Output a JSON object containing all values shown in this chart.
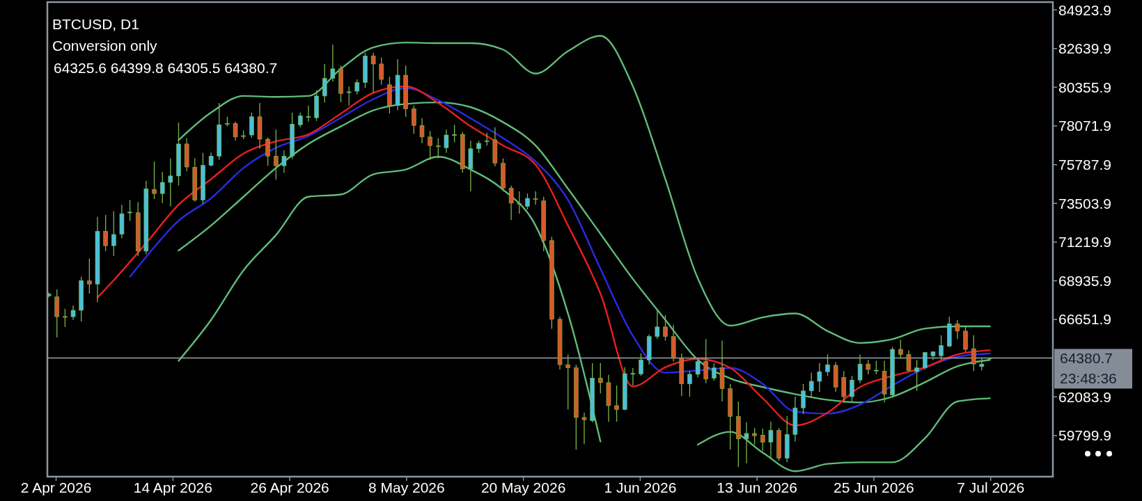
{
  "chart_data": {
    "type": "candlestick",
    "title": "BTCUSD, D1",
    "subtitle": "Conversion only",
    "annotations": [
      "64325.6 64399.8 64305.5 64380.7",
      "23:48:36"
    ],
    "xlim": [
      "2026-04-01T02:24",
      "2026-07-13T09:22"
    ],
    "xticks": [
      {
        "value": "2026-04-02",
        "label": "2 Apr 2026"
      },
      {
        "value": "2026-04-14",
        "label": "14 Apr 2026"
      },
      {
        "value": "2026-04-26",
        "label": "26 Apr 2026"
      },
      {
        "value": "2026-05-08",
        "label": "8 May 2026"
      },
      {
        "value": "2026-05-20",
        "label": "20 May 2026"
      },
      {
        "value": "2026-06-01",
        "label": "1 Jun 2026"
      },
      {
        "value": "2026-06-13",
        "label": "13 Jun 2026"
      },
      {
        "value": "2026-06-25",
        "label": "25 Jun 2026"
      },
      {
        "value": "2026-07-07",
        "label": "7 Jul 2026"
      }
    ],
    "ylim": [
      57376,
      85384
    ],
    "yticks": [
      59799.9,
      62083.9,
      66651.9,
      68935.9,
      71219.9,
      73503.9,
      75787.9,
      78071.9,
      80355.9,
      82639.9,
      84923.9
    ],
    "ref_lines": [
      {
        "axis": "y",
        "value": 64380.7,
        "label": "64380.7",
        "color": "#9aa5b1"
      }
    ],
    "x": [
      "2026-04-01T06:00",
      "2026-04-02T02:00",
      "2026-04-02T22:00",
      "2026-04-03T18:00",
      "2026-04-04T14:00",
      "2026-04-05T10:00",
      "2026-04-06T06:00",
      "2026-04-07T02:00",
      "2026-04-07T22:00",
      "2026-04-08T18:00",
      "2026-04-09T14:00",
      "2026-04-10T10:00",
      "2026-04-11T06:00",
      "2026-04-12T02:00",
      "2026-04-12T22:00",
      "2026-04-13T18:00",
      "2026-04-14T14:00",
      "2026-04-15T10:00",
      "2026-04-16T06:00",
      "2026-04-17T02:00",
      "2026-04-17T22:00",
      "2026-04-18T18:00",
      "2026-04-19T14:00",
      "2026-04-20T10:00",
      "2026-04-21T06:00",
      "2026-04-22T02:00",
      "2026-04-22T22:00",
      "2026-04-23T18:00",
      "2026-04-24T14:00",
      "2026-04-25T10:00",
      "2026-04-26T06:00",
      "2026-04-27T02:00",
      "2026-04-27T22:00",
      "2026-04-28T18:00",
      "2026-04-29T14:00",
      "2026-04-30T10:00",
      "2026-05-01T06:00",
      "2026-05-02T02:00",
      "2026-05-02T22:00",
      "2026-05-03T18:00",
      "2026-05-04T14:00",
      "2026-05-05T10:00",
      "2026-05-06T06:00",
      "2026-05-07T02:00",
      "2026-05-07T22:00",
      "2026-05-08T18:00",
      "2026-05-09T14:00",
      "2026-05-10T10:00",
      "2026-05-11T06:00",
      "2026-05-12T02:00",
      "2026-05-12T22:00",
      "2026-05-13T18:00",
      "2026-05-14T14:00",
      "2026-05-15T10:00",
      "2026-05-16T06:00",
      "2026-05-17T02:00",
      "2026-05-17T22:00",
      "2026-05-18T18:00",
      "2026-05-19T14:00",
      "2026-05-20T10:00",
      "2026-05-21T06:00",
      "2026-05-22T02:00",
      "2026-05-22T22:00",
      "2026-05-23T18:00",
      "2026-05-24T14:00",
      "2026-05-25T10:00",
      "2026-05-26T06:00",
      "2026-05-27T02:00",
      "2026-05-27T22:00",
      "2026-05-28T18:00",
      "2026-05-29T14:00",
      "2026-05-30T10:00",
      "2026-05-31T06:00",
      "2026-06-01T02:00",
      "2026-06-01T22:00",
      "2026-06-02T18:00",
      "2026-06-03T14:00",
      "2026-06-04T10:00",
      "2026-06-05T06:00",
      "2026-06-06T02:00",
      "2026-06-06T22:00",
      "2026-06-07T18:00",
      "2026-06-08T14:00",
      "2026-06-09T10:00",
      "2026-06-10T06:00",
      "2026-06-11T02:00",
      "2026-06-11T22:00",
      "2026-06-12T18:00",
      "2026-06-13T14:00",
      "2026-06-14T10:00",
      "2026-06-15T06:00",
      "2026-06-16T02:00",
      "2026-06-16T22:00",
      "2026-06-17T18:00",
      "2026-06-18T14:00",
      "2026-06-19T10:00",
      "2026-06-20T06:00",
      "2026-06-21T02:00",
      "2026-06-21T22:00",
      "2026-06-22T18:00",
      "2026-06-23T14:00",
      "2026-06-24T10:00",
      "2026-06-25T06:00",
      "2026-06-26T02:00",
      "2026-06-26T22:00",
      "2026-06-27T18:00",
      "2026-06-28T14:00",
      "2026-06-29T10:00",
      "2026-06-30T06:00",
      "2026-07-01T02:00",
      "2026-07-01T22:00",
      "2026-07-02T18:00",
      "2026-07-03T14:00",
      "2026-07-04T10:00",
      "2026-07-05T06:00",
      "2026-07-06T02:00",
      "2026-07-06T22:00"
    ],
    "ohlc": [
      [
        68050,
        68250,
        67950,
        68150
      ],
      [
        67986,
        68420,
        65588,
        66816
      ],
      [
        66830,
        67288,
        66211,
        66800
      ],
      [
        66816,
        67476,
        66627,
        67193
      ],
      [
        67193,
        69176,
        66533,
        68949
      ],
      [
        68930,
        70252,
        68175,
        68741
      ],
      [
        68741,
        72707,
        67665,
        71857
      ],
      [
        71857,
        72820,
        70686,
        71007
      ],
      [
        71007,
        73046,
        70403,
        71668
      ],
      [
        71687,
        73424,
        71441,
        72895
      ],
      [
        72970,
        73707,
        72480,
        72990
      ],
      [
        72952,
        73575,
        70403,
        70686
      ],
      [
        70686,
        74840,
        70498,
        74368
      ],
      [
        74330,
        75973,
        73763,
        74085
      ],
      [
        74085,
        75368,
        73518,
        74746
      ],
      [
        74746,
        76162,
        73329,
        75123
      ],
      [
        75123,
        78276,
        74557,
        77011
      ],
      [
        77011,
        77351,
        75406,
        75652
      ],
      [
        75633,
        76162,
        73613,
        73707
      ],
      [
        73707,
        76482,
        73480,
        75746
      ],
      [
        75746,
        76501,
        75689,
        76294
      ],
      [
        76294,
        79428,
        76067,
        78144
      ],
      [
        78200,
        78616,
        78049,
        78220
      ],
      [
        78220,
        78333,
        77200,
        77426
      ],
      [
        77500,
        77804,
        77294,
        77480
      ],
      [
        77540,
        78862,
        77389,
        78616
      ],
      [
        78616,
        79428,
        76728,
        77294
      ],
      [
        77294,
        77389,
        75727,
        76294
      ],
      [
        76294,
        77861,
        74897,
        75727
      ],
      [
        75727,
        76634,
        75312,
        76294
      ],
      [
        76294,
        78862,
        76124,
        78182
      ],
      [
        78144,
        78862,
        77993,
        78672
      ],
      [
        78600,
        79277,
        78333,
        78630
      ],
      [
        78559,
        80183,
        78370,
        79843
      ],
      [
        79843,
        81731,
        79465,
        80881
      ],
      [
        80881,
        82864,
        80692,
        81448
      ],
      [
        81448,
        81637,
        79465,
        79994
      ],
      [
        80050,
        80409,
        79277,
        80090
      ],
      [
        80126,
        80825,
        79937,
        80636
      ],
      [
        80636,
        82392,
        80315,
        82203
      ],
      [
        82203,
        82392,
        80032,
        81731
      ],
      [
        81731,
        82109,
        80504,
        80825
      ],
      [
        80504,
        80976,
        78805,
        79277
      ],
      [
        79277,
        82014,
        78994,
        81070
      ],
      [
        81070,
        81637,
        78616,
        79088
      ],
      [
        79088,
        79277,
        77615,
        78106
      ],
      [
        78106,
        78522,
        77049,
        77426
      ],
      [
        77426,
        77766,
        76067,
        76916
      ],
      [
        76900,
        77351,
        76162,
        76860
      ],
      [
        76784,
        77861,
        76482,
        77540
      ],
      [
        77520,
        78144,
        77105,
        77560
      ],
      [
        77577,
        77729,
        75312,
        75538
      ],
      [
        75538,
        77200,
        74217,
        76728
      ],
      [
        76728,
        77200,
        76482,
        77049
      ],
      [
        77180,
        77672,
        76916,
        77200
      ],
      [
        77256,
        77993,
        75689,
        75878
      ],
      [
        75878,
        76162,
        74217,
        74406
      ],
      [
        74406,
        74557,
        72518,
        73518
      ],
      [
        73500,
        74217,
        72896,
        73460
      ],
      [
        73329,
        74085,
        73140,
        73801
      ],
      [
        73780,
        74217,
        73424,
        73760
      ],
      [
        73650,
        73896,
        70686,
        71309
      ],
      [
        71309,
        71535,
        66099,
        66665
      ],
      [
        66665,
        66816,
        63701,
        63984
      ],
      [
        63984,
        64588,
        61341,
        63795
      ],
      [
        63795,
        63984,
        58980,
        60868
      ],
      [
        60868,
        61152,
        59301,
        60736
      ],
      [
        60679,
        64078,
        60585,
        63191
      ],
      [
        63191,
        64078,
        62285,
        62926
      ],
      [
        62926,
        63380,
        60623,
        61567
      ],
      [
        61567,
        62757,
        60623,
        61341
      ],
      [
        61341,
        63833,
        61303,
        63455
      ],
      [
        63455,
        63795,
        62757,
        63470
      ],
      [
        63436,
        64645,
        63323,
        64267
      ],
      [
        64267,
        65777,
        63984,
        65645
      ],
      [
        65645,
        67193,
        65494,
        66212
      ],
      [
        66212,
        66910,
        65400,
        65645
      ],
      [
        65645,
        66344,
        64173,
        64361
      ],
      [
        64361,
        64645,
        62134,
        62851
      ],
      [
        62851,
        63606,
        62096,
        63417
      ],
      [
        63417,
        64361,
        63229,
        64173
      ],
      [
        64173,
        65494,
        62889,
        63135
      ],
      [
        63191,
        64078,
        63040,
        63795
      ],
      [
        63795,
        65400,
        61813,
        62568
      ],
      [
        62568,
        62851,
        58980,
        60925
      ],
      [
        60925,
        61813,
        57942,
        59603
      ],
      [
        59603,
        60585,
        58168,
        59924
      ],
      [
        59924,
        60246,
        59263,
        59792
      ],
      [
        59830,
        60208,
        58886,
        59414
      ],
      [
        59414,
        60623,
        58414,
        60113
      ],
      [
        60113,
        60246,
        58320,
        58471
      ],
      [
        58471,
        60963,
        58225,
        59868
      ],
      [
        59868,
        62096,
        59452,
        61435
      ],
      [
        61435,
        62851,
        61058,
        62436
      ],
      [
        62436,
        63512,
        62002,
        63002
      ],
      [
        63002,
        64078,
        62379,
        63568
      ],
      [
        63568,
        64588,
        63323,
        63984
      ],
      [
        63946,
        64135,
        62379,
        62663
      ],
      [
        63229,
        63606,
        61718,
        62096
      ],
      [
        62096,
        63323,
        61813,
        63078
      ],
      [
        63078,
        64588,
        62889,
        64022
      ],
      [
        64022,
        64267,
        63417,
        63701
      ],
      [
        63640,
        64210,
        63417,
        63660
      ],
      [
        63606,
        64210,
        61756,
        62247
      ],
      [
        62190,
        65022,
        62096,
        64890
      ],
      [
        64890,
        65456,
        64399,
        64588
      ],
      [
        64588,
        64834,
        63606,
        63644
      ],
      [
        63568,
        64267,
        62436,
        63795
      ],
      [
        63795,
        64739,
        63701,
        64701
      ],
      [
        64512,
        64777,
        64267,
        64739
      ],
      [
        64512,
        65721,
        64267,
        65117
      ],
      [
        65079,
        66816,
        65022,
        66400
      ],
      [
        66400,
        66627,
        65494,
        65966
      ],
      [
        65966,
        66212,
        64739,
        64890
      ],
      [
        64928,
        65721,
        63607,
        64022
      ],
      [
        63870,
        64361,
        63644,
        64022
      ],
      [
        64325.6,
        64399.8,
        64305.5,
        64380.7
      ]
    ],
    "series": [
      {
        "type": "line",
        "color": "#5fbd7a",
        "x": [
          "2026-04-14T14:00",
          "2026-04-17T22:00",
          "2026-04-21T06:00",
          "2026-04-24T14:00",
          "2026-04-27T22:00",
          "2026-05-01T06:00",
          "2026-05-04T14:00",
          "2026-05-07T22:00",
          "2026-05-11T06:00",
          "2026-05-14T14:00",
          "2026-05-17T22:00",
          "2026-05-21T06:00",
          "2026-05-24T14:00",
          "2026-05-27T22:00",
          "2026-05-31T06:00",
          "2026-06-03T14:00",
          "2026-06-06T22:00",
          "2026-06-10T06:00",
          "2026-06-13T14:00",
          "2026-06-16T22:00",
          "2026-06-20T06:00",
          "2026-06-23T14:00",
          "2026-06-26T22:00",
          "2026-06-30T06:00",
          "2026-07-03T14:00",
          "2026-07-06T22:00"
        ],
        "values": [
          77238,
          78862,
          79843,
          79787,
          79843,
          81448,
          82713,
          82996,
          82958,
          82958,
          82581,
          81165,
          82486,
          83392,
          80409,
          74935,
          69082,
          66287,
          66778,
          67005,
          65966,
          65268,
          65494,
          66117,
          66249,
          66249
        ]
      },
      {
        "type": "line",
        "color": "#5fbd7a",
        "x": [
          "2026-04-14T14:00",
          "2026-04-17T22:00",
          "2026-04-21T06:00",
          "2026-04-24T14:00",
          "2026-04-27T22:00",
          "2026-05-01T06:00",
          "2026-05-04T14:00",
          "2026-05-07T22:00",
          "2026-05-11T06:00",
          "2026-05-14T14:00",
          "2026-05-17T22:00",
          "2026-05-21T06:00",
          "2026-05-24T14:00",
          "2026-05-27T22:00",
          "2026-05-31T06:00",
          "2026-06-03T14:00",
          "2026-06-06T22:00",
          "2026-06-10T06:00",
          "2026-06-13T14:00",
          "2026-06-16T22:00",
          "2026-06-20T06:00",
          "2026-06-23T14:00",
          "2026-06-26T22:00",
          "2026-06-30T06:00",
          "2026-07-03T14:00",
          "2026-07-06T22:00"
        ],
        "values": [
          70724,
          72197,
          73896,
          75595,
          77011,
          78050,
          78994,
          79371,
          79465,
          79182,
          78295,
          76916,
          74368,
          71706,
          69044,
          66627,
          64267,
          63172,
          62663,
          62247,
          61907,
          61756,
          62096,
          62946,
          63890,
          64267
        ]
      },
      {
        "type": "line",
        "color": "#5fbd7a",
        "x": [
          "2026-04-14T14:00",
          "2026-04-17T22:00",
          "2026-04-21T06:00",
          "2026-04-24T14:00",
          "2026-04-27T22:00",
          "2026-05-01T06:00",
          "2026-05-04T14:00",
          "2026-05-07T22:00",
          "2026-05-11T06:00",
          "2026-05-14T14:00",
          "2026-05-17T22:00",
          "2026-05-21T06:00",
          "2026-05-24T14:00",
          "2026-05-27T22:00",
          "2026-05-31T06:00",
          "2026-06-03T14:00",
          "2026-06-06T22:00",
          "2026-06-10T06:00",
          "2026-06-13T14:00",
          "2026-06-16T22:00",
          "2026-06-20T06:00",
          "2026-06-23T14:00",
          "2026-06-26T22:00",
          "2026-06-30T06:00",
          "2026-07-03T14:00",
          "2026-07-06T22:00"
        ],
        "values": [
          64210,
          66627,
          69554,
          71630,
          73896,
          74029,
          75218,
          75500,
          76256,
          75500,
          74311,
          72197,
          67004,
          59452,
          null,
          null,
          59263,
          60019,
          58792,
          57697,
          58131,
          58225,
          58225,
          59641,
          61813,
          62002
        ]
      },
      {
        "type": "line",
        "color": "#2a2ae6",
        "x": [
          "2026-04-09T14:00",
          "2026-04-11T06:00",
          "2026-04-14T14:00",
          "2026-04-17T22:00",
          "2026-04-21T06:00",
          "2026-04-24T14:00",
          "2026-04-27T22:00",
          "2026-05-01T06:00",
          "2026-05-04T14:00",
          "2026-05-07T22:00",
          "2026-05-11T06:00",
          "2026-05-14T14:00",
          "2026-05-17T22:00",
          "2026-05-21T06:00",
          "2026-05-24T14:00",
          "2026-05-27T22:00",
          "2026-05-31T06:00",
          "2026-06-03T14:00",
          "2026-06-06T22:00",
          "2026-06-10T06:00",
          "2026-06-13T14:00",
          "2026-06-16T22:00",
          "2026-06-20T06:00",
          "2026-06-23T14:00",
          "2026-06-26T22:00",
          "2026-06-30T16:00",
          "2026-07-03T14:00",
          "2026-07-06T22:00"
        ],
        "values": [
          69176,
          70347,
          72480,
          73801,
          75595,
          76784,
          77483,
          78559,
          79654,
          80315,
          79598,
          78522,
          77351,
          75973,
          73707,
          69648,
          65683,
          63512,
          63644,
          63795,
          62851,
          61209,
          61096,
          61624,
          62757,
          63900,
          64456,
          64645
        ]
      },
      {
        "type": "line",
        "color": "#e8201e",
        "x": [
          "2026-04-06T06:00",
          "2026-04-07T22:00",
          "2026-04-11T06:00",
          "2026-04-14T14:00",
          "2026-04-17T22:00",
          "2026-04-21T06:00",
          "2026-04-24T14:00",
          "2026-04-27T22:00",
          "2026-05-01T06:00",
          "2026-05-04T14:00",
          "2026-05-07T22:00",
          "2026-05-11T06:00",
          "2026-05-14T14:00",
          "2026-05-17T22:00",
          "2026-05-21T06:00",
          "2026-05-24T14:00",
          "2026-05-27T22:00",
          "2026-05-31T06:00",
          "2026-06-03T14:00",
          "2026-06-06T22:00",
          "2026-06-10T06:00",
          "2026-06-13T14:00",
          "2026-06-16T22:00",
          "2026-06-20T06:00",
          "2026-06-23T14:00",
          "2026-06-26T22:00",
          "2026-06-30T06:00",
          "2026-07-03T14:00",
          "2026-07-06T22:00"
        ],
        "values": [
          67949,
          68968,
          71158,
          73424,
          74935,
          76445,
          77162,
          77578,
          78805,
          80032,
          80409,
          79428,
          78050,
          76916,
          75784,
          72197,
          68175,
          62700,
          63833,
          64324,
          63795,
          62002,
          60397,
          61152,
          62663,
          63323,
          63833,
          64588,
          64834
        ]
      }
    ]
  }
}
